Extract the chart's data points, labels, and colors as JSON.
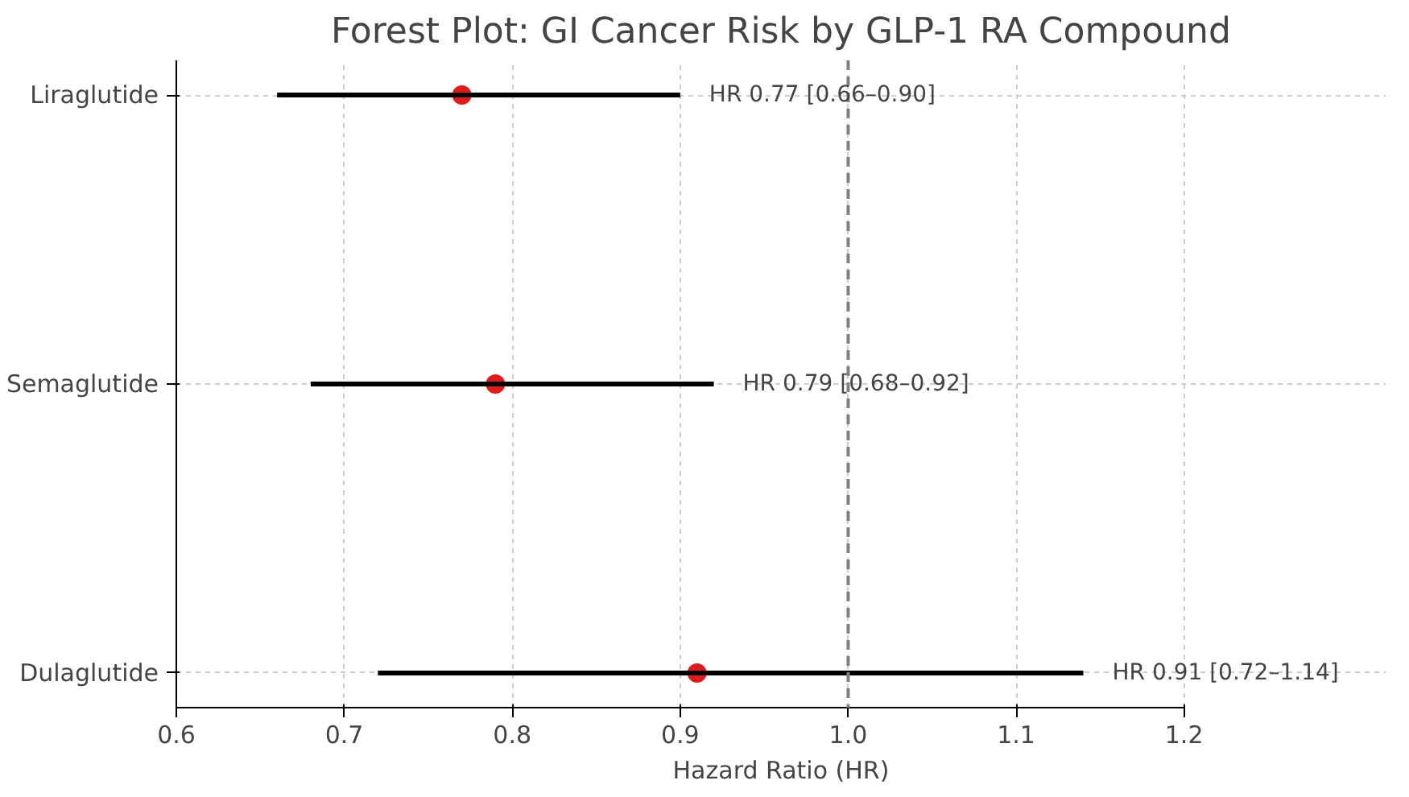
{
  "chart_data": {
    "type": "scatter",
    "orientation": "horizontal",
    "title": "Forest Plot: GI Cancer Risk by GLP-1 RA Compound",
    "xlabel": "Hazard Ratio (HR)",
    "categories": [
      "Liraglutide",
      "Semaglutide",
      "Dulaglutide"
    ],
    "values": [
      0.77,
      0.79,
      0.91
    ],
    "errors": [
      [
        0.66,
        0.9
      ],
      [
        0.68,
        0.92
      ],
      [
        0.72,
        1.14
      ]
    ],
    "color": "#e31a1c",
    "annotations": [
      "HR 0.77 [0.66–0.90]",
      "HR 0.79 [0.68–0.92]",
      "HR 0.91 [0.72–1.14]"
    ],
    "ref_lines": [
      {
        "axis": "x",
        "value": 1.0,
        "color": "#808080",
        "line_style": "dashed"
      }
    ],
    "xlim": [
      0.6,
      1.2
    ],
    "xticks": [
      0.6,
      0.7,
      0.8,
      0.9,
      {
        "value": 1.0,
        "label": "1.0"
      },
      1.1,
      1.2
    ],
    "grid": true,
    "marker": "circle"
  }
}
